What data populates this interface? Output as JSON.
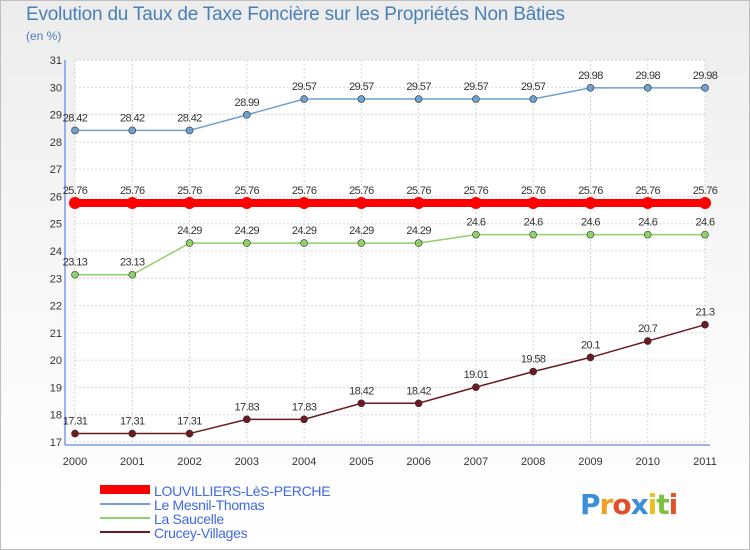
{
  "chart_data": {
    "type": "line",
    "title": "Evolution du Taux de Taxe Foncière sur les Propriétés Non Bâties",
    "subtitle": "(en %)",
    "x": [
      "2000",
      "2001",
      "2002",
      "2003",
      "2004",
      "2005",
      "2006",
      "2007",
      "2008",
      "2009",
      "2010",
      "2011"
    ],
    "ylim": [
      17,
      31
    ],
    "yticks": [
      17,
      18,
      19,
      20,
      21,
      22,
      23,
      24,
      25,
      26,
      27,
      28,
      29,
      30,
      31
    ],
    "grid": true,
    "legend_position": "bottom-left",
    "series": [
      {
        "name": "LOUVILLIERS-LèS-PERCHE",
        "color": "#ff0000",
        "highlight": true,
        "values": [
          25.76,
          25.76,
          25.76,
          25.76,
          25.76,
          25.76,
          25.76,
          25.76,
          25.76,
          25.76,
          25.76,
          25.76
        ],
        "labels": [
          "25.76",
          "25.76",
          "25.76",
          "25.76",
          "25.76",
          "25.76",
          "25.76",
          "25.76",
          "25.76",
          "25.76",
          "25.76",
          "25.76"
        ]
      },
      {
        "name": "Le Mesnil-Thomas",
        "color": "#6fa0d0",
        "highlight": false,
        "values": [
          28.42,
          28.42,
          28.42,
          28.99,
          29.57,
          29.57,
          29.57,
          29.57,
          29.57,
          29.98,
          29.98,
          29.98
        ],
        "labels": [
          "28.42",
          "28.42",
          "28.42",
          "28.99",
          "29.57",
          "29.57",
          "29.57",
          "29.57",
          "29.57",
          "29.98",
          "29.98",
          "29.98"
        ]
      },
      {
        "name": "La Saucelle",
        "color": "#8fd06a",
        "highlight": false,
        "values": [
          23.13,
          23.13,
          24.29,
          24.29,
          24.29,
          24.29,
          24.29,
          24.6,
          24.6,
          24.6,
          24.6,
          24.6
        ],
        "labels": [
          "23.13",
          "23.13",
          "24.29",
          "24.29",
          "24.29",
          "24.29",
          "24.29",
          "24.6",
          "24.6",
          "24.6",
          "24.6",
          "24.6"
        ]
      },
      {
        "name": "Crucey-Villages",
        "color": "#6b1a1f",
        "highlight": false,
        "values": [
          17.31,
          17.31,
          17.31,
          17.83,
          17.83,
          18.42,
          18.42,
          19.01,
          19.58,
          20.1,
          20.7,
          21.3
        ],
        "labels": [
          "17.31",
          "17.31",
          "17.31",
          "17.83",
          "17.83",
          "18.42",
          "18.42",
          "19.01",
          "19.58",
          "20.1",
          "20.7",
          "21.3"
        ]
      }
    ]
  },
  "logo": {
    "letters": [
      "P",
      "r",
      "o",
      "x",
      "i",
      "t",
      "i"
    ],
    "colors": [
      "#3a8fd8",
      "#f0a020",
      "#e0502a",
      "#3a8fd8",
      "#e8c020",
      "#80c040",
      "#e0502a"
    ]
  }
}
